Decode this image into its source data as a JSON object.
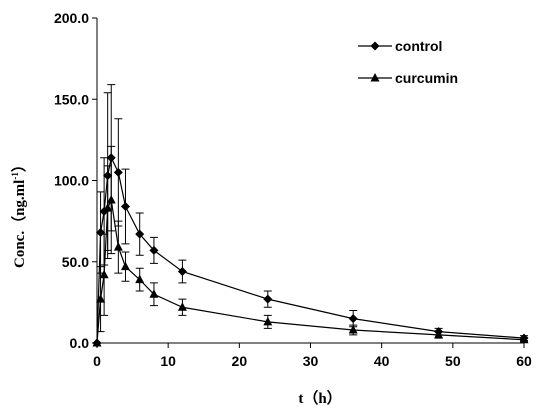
{
  "chart_data": {
    "type": "line",
    "xlabel": "t（h）",
    "ylabel": "Conc.（ng.ml",
    "ylabel_sup": "-1",
    "ylabel_close": "）",
    "xlim": [
      0,
      60
    ],
    "ylim": [
      0,
      200
    ],
    "x_ticks": [
      "0",
      "10",
      "20",
      "30",
      "40",
      "50",
      "60"
    ],
    "y_ticks": [
      "0.0",
      "50.0",
      "100.0",
      "150.0",
      "200.0"
    ],
    "grid": false,
    "legend_position": "top-right",
    "x": [
      0,
      0.5,
      1,
      1.5,
      2,
      3,
      4,
      6,
      8,
      12,
      24,
      36,
      48,
      60
    ],
    "series": [
      {
        "name": "control",
        "marker": "diamond",
        "color": "#000000",
        "values": [
          0,
          68,
          81,
          103,
          114,
          105,
          84,
          67,
          57,
          44,
          27,
          15,
          7,
          3
        ],
        "errors": [
          0,
          25,
          33,
          51,
          45,
          33,
          23,
          13,
          8,
          7,
          5,
          5,
          2,
          1.5
        ]
      },
      {
        "name": "curcumin",
        "marker": "triangle",
        "color": "#000000",
        "values": [
          0,
          27,
          42,
          83,
          88,
          59,
          47,
          39,
          30,
          22,
          13,
          8,
          5,
          2
        ],
        "errors": [
          0,
          20,
          25,
          26,
          33,
          16,
          9,
          7,
          7,
          5,
          4,
          3,
          2,
          1.2
        ]
      }
    ]
  }
}
